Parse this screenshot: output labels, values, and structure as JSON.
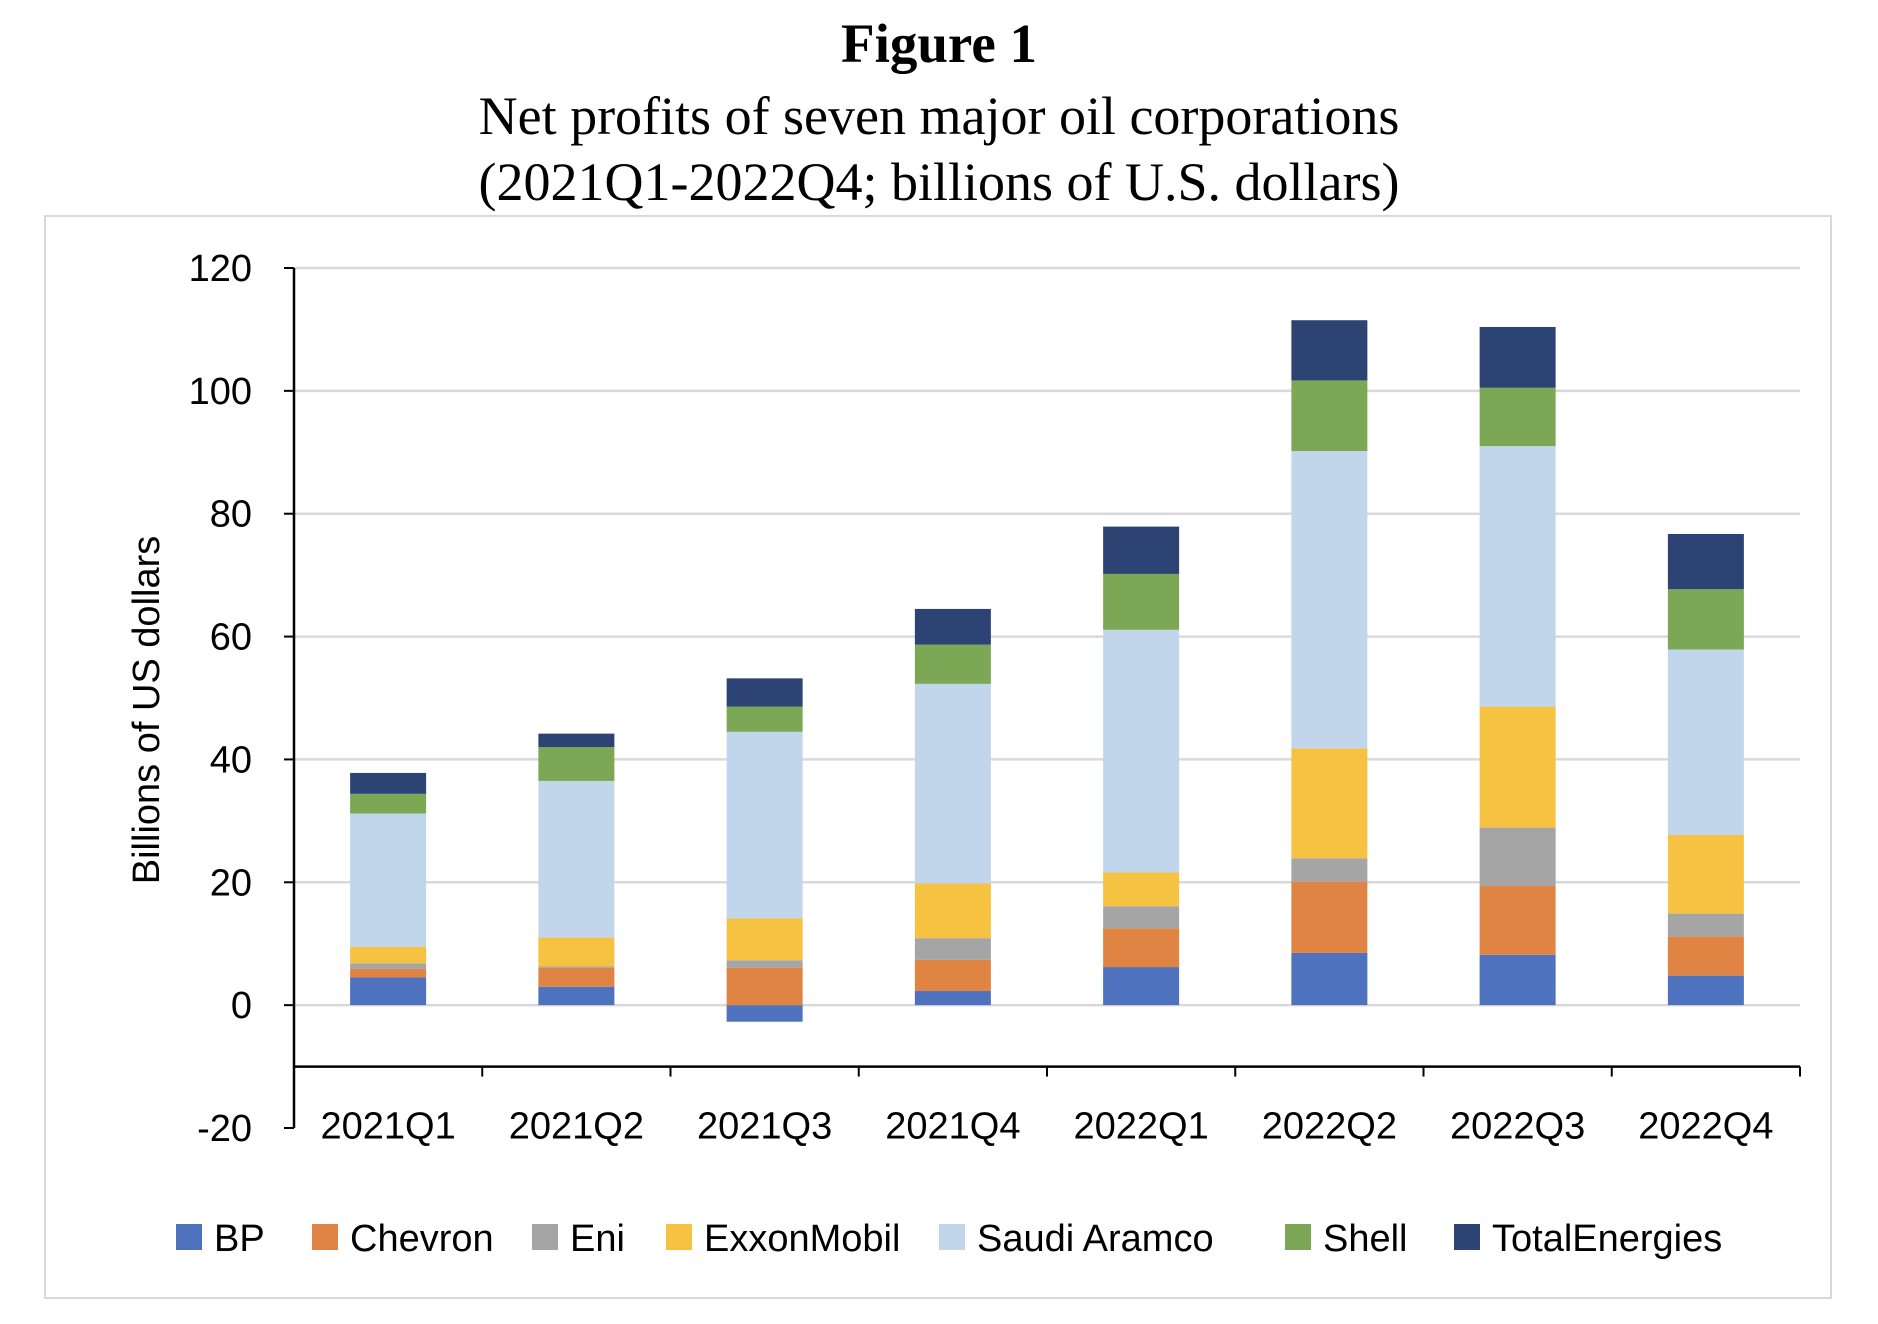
{
  "figure": {
    "label": "Figure 1",
    "subtitle_line1": "Net profits of seven major oil corporations",
    "subtitle_line2": "(2021Q1-2022Q4; billions of U.S. dollars)"
  },
  "chart_data": {
    "type": "bar",
    "stacked": true,
    "title": "",
    "xlabel": "",
    "ylabel": "Billions of US dollars",
    "ylim": [
      -20,
      120
    ],
    "yticks": [
      -20,
      0,
      20,
      40,
      60,
      80,
      100,
      120
    ],
    "grid": true,
    "legend_position": "bottom",
    "categories": [
      "2021Q1",
      "2021Q2",
      "2021Q3",
      "2021Q4",
      "2022Q1",
      "2022Q2",
      "2022Q3",
      "2022Q4"
    ],
    "series": [
      {
        "name": "BP",
        "color": "#4f72be",
        "values": [
          4.5,
          3.0,
          -2.7,
          2.3,
          6.2,
          8.5,
          8.2,
          4.8
        ]
      },
      {
        "name": "Chevron",
        "color": "#e08443",
        "values": [
          1.4,
          3.1,
          6.1,
          5.1,
          6.3,
          11.6,
          11.2,
          6.4
        ]
      },
      {
        "name": "Eni",
        "color": "#a5a5a5",
        "values": [
          0.9,
          0.2,
          1.2,
          3.5,
          3.6,
          3.8,
          9.5,
          3.7
        ]
      },
      {
        "name": "ExxonMobil",
        "color": "#f5c242",
        "values": [
          2.7,
          4.7,
          6.8,
          8.9,
          5.5,
          17.9,
          19.7,
          12.8
        ]
      },
      {
        "name": "Saudi Aramco",
        "color": "#c2d6eb",
        "values": [
          21.7,
          25.5,
          30.4,
          32.5,
          39.5,
          48.4,
          42.4,
          30.2
        ]
      },
      {
        "name": "Shell",
        "color": "#7ca855",
        "values": [
          3.2,
          5.5,
          4.1,
          6.4,
          9.1,
          11.5,
          9.5,
          9.8
        ]
      },
      {
        "name": "TotalEnergies",
        "color": "#2c4373",
        "values": [
          3.4,
          2.2,
          4.6,
          5.8,
          7.7,
          9.8,
          9.9,
          9.0
        ]
      }
    ]
  }
}
